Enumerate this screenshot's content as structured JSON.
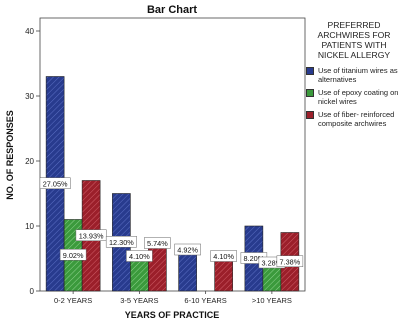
{
  "chart_data": {
    "type": "bar",
    "title": "Bar Chart",
    "xlabel": "YEARS OF PRACTICE",
    "ylabel": "NO. OF RESPONSES",
    "categories": [
      "0-2 YEARS",
      "3-5 YEARS",
      "6-10 YEARS",
      ">10 YEARS"
    ],
    "ylim": [
      0,
      42
    ],
    "yticks": [
      0,
      10,
      20,
      30,
      40
    ],
    "grid": false,
    "legend_title": "PREFERRED ARCHWIRES FOR PATIENTS WITH NICKEL ALLERGY",
    "legend_position": "right",
    "series": [
      {
        "name": "Use of titanium wires as alternatives",
        "color": "#283b8e",
        "values": [
          33,
          15,
          6,
          10
        ],
        "labels": [
          "27.05%",
          "12.30%",
          "4.92%",
          "8.20%"
        ]
      },
      {
        "name": "Use of epoxy coating on nickel wires",
        "color": "#3b9a3c",
        "values": [
          11,
          5,
          0,
          4
        ],
        "labels": [
          "9.02%",
          "4.10%",
          "",
          "3.28%"
        ]
      },
      {
        "name": "Use of fiber- reinforced composite archwires",
        "color": "#9b1f2a",
        "values": [
          17,
          7,
          5,
          9
        ],
        "labels": [
          "13.93%",
          "5.74%",
          "4.10%",
          "7.38%"
        ]
      }
    ]
  }
}
